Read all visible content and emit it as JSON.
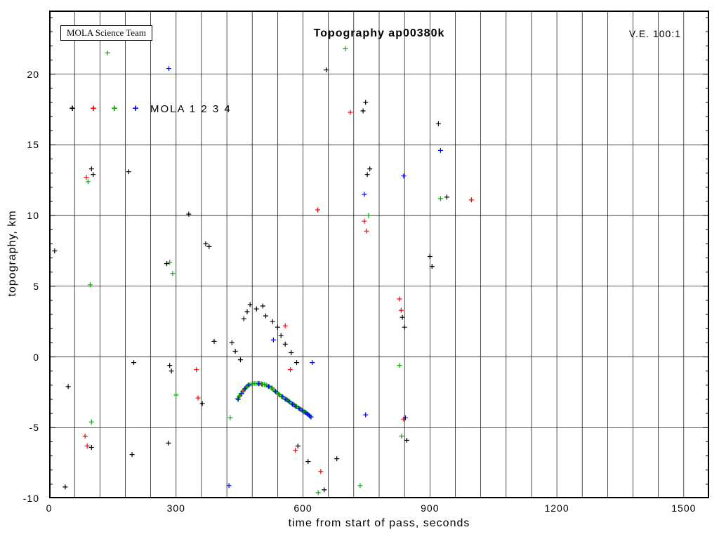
{
  "header": {
    "title": "Topography ap00380k",
    "credit_box": "MOLA Science Team",
    "ve_label": "V.E. 100:1"
  },
  "legend": {
    "label": "MOLA 1 2 3 4"
  },
  "axes": {
    "x": {
      "label": "time from start of pass, seconds",
      "min": 0,
      "max": 1560,
      "major_ticks": [
        0,
        300,
        600,
        900,
        1200,
        1500
      ],
      "minor_step": 60
    },
    "y": {
      "label": "topography, km",
      "min": -10,
      "max": 24.5,
      "major_ticks": [
        -10,
        -5,
        0,
        5,
        10,
        15,
        20
      ],
      "minor_step": 1
    }
  },
  "chart_data": {
    "type": "scatter",
    "title": "Topography ap00380k",
    "xlabel": "time from start of pass, seconds",
    "ylabel": "topography, km",
    "xlim": [
      0,
      1560
    ],
    "ylim": [
      -10,
      24.5
    ],
    "grid": true,
    "marker": "plus",
    "series": [
      {
        "name": "MOLA 1",
        "color": "#000000",
        "points": [
          [
            13,
            7.5
          ],
          [
            38,
            -9.2
          ],
          [
            45,
            -2.1
          ],
          [
            100,
            13.3
          ],
          [
            104,
            12.9
          ],
          [
            100,
            -6.4
          ],
          [
            188,
            13.1
          ],
          [
            196,
            -6.9
          ],
          [
            200,
            -0.4
          ],
          [
            278,
            6.6
          ],
          [
            282,
            -6.1
          ],
          [
            285,
            -0.6
          ],
          [
            289,
            -1.0
          ],
          [
            330,
            10.1
          ],
          [
            362,
            -3.3
          ],
          [
            370,
            8.0
          ],
          [
            378,
            7.8
          ],
          [
            390,
            1.1
          ],
          [
            432,
            1.0
          ],
          [
            440,
            0.4
          ],
          [
            452,
            -0.2
          ],
          [
            460,
            2.7
          ],
          [
            468,
            3.2
          ],
          [
            475,
            3.7
          ],
          [
            490,
            3.4
          ],
          [
            505,
            3.6
          ],
          [
            512,
            2.9
          ],
          [
            528,
            2.5
          ],
          [
            540,
            2.1
          ],
          [
            548,
            1.5
          ],
          [
            558,
            0.9
          ],
          [
            572,
            0.3
          ],
          [
            585,
            -0.4
          ],
          [
            588,
            -6.3
          ],
          [
            612,
            -7.4
          ],
          [
            650,
            -9.4
          ],
          [
            655,
            20.3
          ],
          [
            680,
            -7.2
          ],
          [
            742,
            17.4
          ],
          [
            748,
            18.0
          ],
          [
            752,
            12.9
          ],
          [
            758,
            13.3
          ],
          [
            835,
            2.8
          ],
          [
            840,
            2.1
          ],
          [
            845,
            -5.9
          ],
          [
            900,
            7.1
          ],
          [
            905,
            6.4
          ],
          [
            920,
            16.5
          ],
          [
            940,
            11.3
          ]
        ]
      },
      {
        "name": "MOLA 2",
        "color": "#ff0000",
        "points": [
          [
            85,
            -5.6
          ],
          [
            88,
            12.7
          ],
          [
            90,
            -6.3
          ],
          [
            348,
            -0.9
          ],
          [
            352,
            -2.9
          ],
          [
            451,
            -2.75
          ],
          [
            459,
            -2.4
          ],
          [
            467,
            -2.1
          ],
          [
            503,
            -1.95
          ],
          [
            527,
            -2.2
          ],
          [
            543,
            -2.65
          ],
          [
            558,
            2.2
          ],
          [
            563,
            -3.05
          ],
          [
            570,
            -0.9
          ],
          [
            578,
            -3.4
          ],
          [
            579,
            -3.4
          ],
          [
            582,
            -6.6
          ],
          [
            595,
            -3.7
          ],
          [
            603,
            -3.9
          ],
          [
            635,
            10.4
          ],
          [
            642,
            -8.1
          ],
          [
            712,
            17.3
          ],
          [
            745,
            9.6
          ],
          [
            750,
            8.9
          ],
          [
            828,
            4.1
          ],
          [
            832,
            3.3
          ],
          [
            838,
            -4.4
          ],
          [
            998,
            11.1
          ]
        ]
      },
      {
        "name": "MOLA 3",
        "color": "#00b000",
        "points": [
          [
            92,
            12.4
          ],
          [
            97,
            5.1
          ],
          [
            100,
            -4.6
          ],
          [
            138,
            21.5
          ],
          [
            285,
            6.7
          ],
          [
            292,
            5.9
          ],
          [
            300,
            -2.7
          ],
          [
            428,
            -4.3
          ],
          [
            445,
            -2.95
          ],
          [
            449,
            -2.8
          ],
          [
            453,
            -2.6
          ],
          [
            457,
            -2.45
          ],
          [
            461,
            -2.3
          ],
          [
            465,
            -2.15
          ],
          [
            469,
            -2.05
          ],
          [
            473,
            -1.98
          ],
          [
            477,
            -1.93
          ],
          [
            481,
            -1.9
          ],
          [
            485,
            -1.88
          ],
          [
            489,
            -1.87
          ],
          [
            493,
            -1.87
          ],
          [
            497,
            -1.88
          ],
          [
            501,
            -1.9
          ],
          [
            505,
            -1.92
          ],
          [
            509,
            -1.95
          ],
          [
            513,
            -2.0
          ],
          [
            517,
            -2.05
          ],
          [
            521,
            -2.1
          ],
          [
            525,
            -2.2
          ],
          [
            529,
            -2.3
          ],
          [
            533,
            -2.4
          ],
          [
            537,
            -2.5
          ],
          [
            541,
            -2.6
          ],
          [
            545,
            -2.7
          ],
          [
            549,
            -2.8
          ],
          [
            553,
            -2.85
          ],
          [
            557,
            -2.95
          ],
          [
            561,
            -3.0
          ],
          [
            565,
            -3.1
          ],
          [
            569,
            -3.2
          ],
          [
            573,
            -3.3
          ],
          [
            577,
            -3.35
          ],
          [
            581,
            -3.45
          ],
          [
            585,
            -3.5
          ],
          [
            589,
            -3.6
          ],
          [
            593,
            -3.7
          ],
          [
            597,
            -3.75
          ],
          [
            601,
            -3.85
          ],
          [
            605,
            -3.9
          ],
          [
            609,
            -4.0
          ],
          [
            613,
            -4.1
          ],
          [
            617,
            -4.2
          ],
          [
            636,
            -9.6
          ],
          [
            700,
            21.8
          ],
          [
            735,
            -9.1
          ],
          [
            755,
            10.0
          ],
          [
            828,
            -0.6
          ],
          [
            833,
            -5.6
          ],
          [
            925,
            11.2
          ]
        ]
      },
      {
        "name": "MOLA 4",
        "color": "#0000ff",
        "points": [
          [
            283,
            20.4
          ],
          [
            425,
            -9.1
          ],
          [
            447,
            -3.0
          ],
          [
            455,
            -2.6
          ],
          [
            463,
            -2.25
          ],
          [
            471,
            -2.0
          ],
          [
            495,
            -1.9
          ],
          [
            519,
            -2.1
          ],
          [
            530,
            1.2
          ],
          [
            535,
            -2.45
          ],
          [
            551,
            -2.8
          ],
          [
            559,
            -3.0
          ],
          [
            567,
            -3.15
          ],
          [
            575,
            -3.35
          ],
          [
            583,
            -3.5
          ],
          [
            591,
            -3.65
          ],
          [
            599,
            -3.8
          ],
          [
            607,
            -3.95
          ],
          [
            611,
            -4.05
          ],
          [
            615,
            -4.15
          ],
          [
            619,
            -4.25
          ],
          [
            622,
            -0.4
          ],
          [
            745,
            11.5
          ],
          [
            748,
            -4.1
          ],
          [
            838,
            12.8
          ],
          [
            842,
            -4.3
          ],
          [
            925,
            14.6
          ]
        ]
      }
    ]
  }
}
